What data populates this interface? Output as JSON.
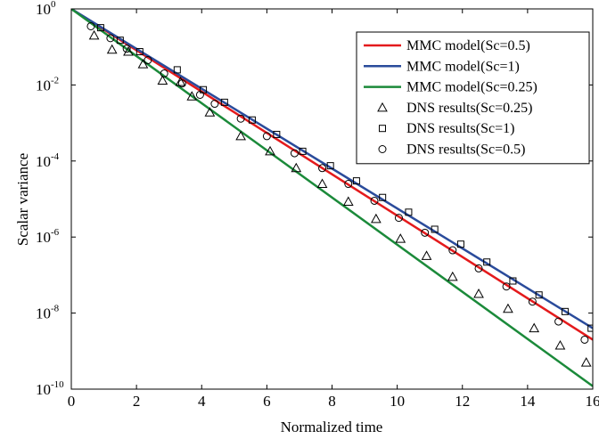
{
  "chart_data": {
    "type": "line",
    "title": "",
    "xlabel": "Normalized time",
    "ylabel": "Scalar variance",
    "xlim": [
      0,
      16
    ],
    "ylim": [
      1e-10,
      1
    ],
    "yscale": "log",
    "grid": false,
    "legend_position": "top-right",
    "x_ticks": [
      {
        "value": 0,
        "label": "0"
      },
      {
        "value": 2,
        "label": "2"
      },
      {
        "value": 4,
        "label": "4"
      },
      {
        "value": 6,
        "label": "6"
      },
      {
        "value": 8,
        "label": "8"
      },
      {
        "value": 10,
        "label": "10"
      },
      {
        "value": 12,
        "label": "12"
      },
      {
        "value": 14,
        "label": "14"
      },
      {
        "value": 16,
        "label": "16"
      }
    ],
    "y_ticks": [
      {
        "value": 1,
        "base": "10",
        "exp": "0"
      },
      {
        "value": 0.01,
        "base": "10",
        "exp": "-2"
      },
      {
        "value": 0.0001,
        "base": "10",
        "exp": "-4"
      },
      {
        "value": 1e-06,
        "base": "10",
        "exp": "-6"
      },
      {
        "value": 1e-08,
        "base": "10",
        "exp": "-8"
      },
      {
        "value": 1e-10,
        "base": "10",
        "exp": "-10"
      }
    ],
    "series": [
      {
        "name": "MMC model(Sc=0.5)",
        "kind": "line",
        "color": "#e41a1c",
        "x": [
          0,
          16
        ],
        "y": [
          1,
          2e-09
        ]
      },
      {
        "name": "MMC model(Sc=1)",
        "kind": "line",
        "color": "#2a4b9b",
        "x": [
          0,
          16
        ],
        "y": [
          1,
          4e-09
        ]
      },
      {
        "name": "MMC model(Sc=0.25)",
        "kind": "line",
        "color": "#1b8a3a",
        "x": [
          0,
          16
        ],
        "y": [
          1,
          1.2e-10
        ]
      },
      {
        "name": "DNS results(Sc=0.25)",
        "kind": "scatter",
        "marker": "triangle",
        "color": "#000000",
        "x": [
          0.7,
          1.25,
          1.75,
          2.2,
          2.8,
          3.35,
          3.7,
          4.25,
          5.2,
          6.1,
          6.9,
          7.7,
          8.5,
          9.35,
          10.1,
          10.9,
          11.7,
          12.5,
          13.4,
          14.2,
          15.0,
          15.8
        ],
        "y": [
          0.2,
          0.085,
          0.075,
          0.035,
          0.013,
          0.012,
          0.005,
          0.0019,
          0.00045,
          0.00018,
          6.5e-05,
          2.5e-05,
          8.5e-06,
          3e-06,
          9e-07,
          3.2e-07,
          9e-08,
          3.2e-08,
          1.3e-08,
          4e-09,
          1.4e-09,
          5e-10
        ]
      },
      {
        "name": "DNS results(Sc=1)",
        "kind": "scatter",
        "marker": "square",
        "color": "#000000",
        "x": [
          0.9,
          1.5,
          2.1,
          3.25,
          4.05,
          4.7,
          5.55,
          6.3,
          7.1,
          7.95,
          8.75,
          9.55,
          10.35,
          11.15,
          11.95,
          12.75,
          13.55,
          14.35,
          15.15,
          15.95
        ],
        "y": [
          0.32,
          0.15,
          0.075,
          0.025,
          0.0075,
          0.0035,
          0.0012,
          0.0005,
          0.00018,
          7.5e-05,
          3e-05,
          1.1e-05,
          4.5e-06,
          1.6e-06,
          6.5e-07,
          2.2e-07,
          7e-08,
          3e-08,
          1.1e-08,
          4e-09
        ]
      },
      {
        "name": "DNS results(Sc=0.5)",
        "kind": "scatter",
        "marker": "circle",
        "color": "#000000",
        "x": [
          0.6,
          1.2,
          1.7,
          2.35,
          2.85,
          3.4,
          3.95,
          4.4,
          5.2,
          6.0,
          6.85,
          7.7,
          8.5,
          9.3,
          10.05,
          10.85,
          11.7,
          12.5,
          13.35,
          14.15,
          14.95,
          15.75
        ],
        "y": [
          0.35,
          0.17,
          0.09,
          0.045,
          0.02,
          0.011,
          0.0055,
          0.0032,
          0.0013,
          0.00045,
          0.00016,
          6.5e-05,
          2.5e-05,
          9e-06,
          3.2e-06,
          1.3e-06,
          4.5e-07,
          1.5e-07,
          5e-08,
          2e-08,
          6e-09,
          2e-09
        ]
      }
    ]
  }
}
